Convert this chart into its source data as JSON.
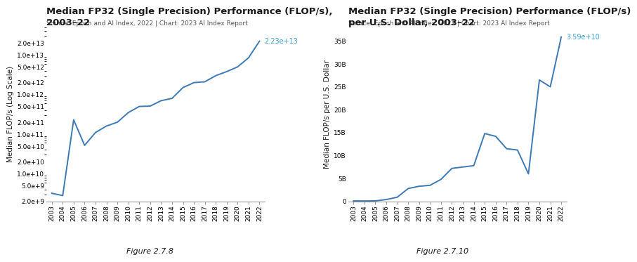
{
  "chart1": {
    "title": "Median FP32 (Single Precision) Performance (FLOP/s),\n2003–22",
    "source": "Source: Epoch and AI Index, 2022 | Chart: 2023 AI Index Report",
    "ylabel": "Median FLOP/s (Log Scale)",
    "figure_label": "Figure 2.7.8",
    "years": [
      2003,
      2004,
      2005,
      2006,
      2007,
      2008,
      2009,
      2010,
      2011,
      2012,
      2013,
      2014,
      2015,
      2016,
      2017,
      2018,
      2019,
      2020,
      2021,
      2022
    ],
    "values": [
      3200000000.0,
      2800000000.0,
      230000000000.0,
      52000000000.0,
      110000000000.0,
      160000000000.0,
      200000000000.0,
      350000000000.0,
      500000000000.0,
      510000000000.0,
      700000000000.0,
      800000000000.0,
      1500000000000.0,
      2000000000000.0,
      2100000000000.0,
      3000000000000.0,
      3800000000000.0,
      5000000000000.0,
      8500000000000.0,
      22300000000000.0
    ],
    "end_label": "2.23e+13",
    "ylim_log": [
      2000000000.0,
      50000000000000.0
    ],
    "log_yticks": [
      2000000000.0,
      5000000000.0,
      10000000000.0,
      20000000000.0,
      50000000000.0,
      100000000000.0,
      200000000000.0,
      500000000000.0,
      1000000000000.0,
      2000000000000.0,
      5000000000000.0,
      10000000000000.0,
      20000000000000.0
    ],
    "log_ytick_labels": [
      "2.0e+9",
      "5.0e+9",
      "1.0e+10",
      "2.0e+10",
      "5.0e+10",
      "1.0e+11",
      "2.0e+11",
      "5.0e+11",
      "1.0e+12",
      "2.0e+12",
      "5.0e+12",
      "1.0e+13",
      "2.0e+13"
    ],
    "line_color": "#3d7ab5",
    "label_color": "#3d9fd4"
  },
  "chart2": {
    "title": "Median FP32 (Single Precision) Performance (FLOP/s)\nper U.S. Dollar, 2003–22",
    "source": "Source: Epoch and AI Index, 2022 | Chart: 2023 AI Index Report",
    "ylabel": "Median FLOP/s per U.S. Dollar",
    "figure_label": "Figure 2.7.10",
    "years": [
      2003,
      2004,
      2005,
      2006,
      2007,
      2008,
      2009,
      2010,
      2011,
      2012,
      2013,
      2014,
      2015,
      2016,
      2017,
      2018,
      2019,
      2020,
      2021,
      2022
    ],
    "values": [
      100000000.0,
      80000000.0,
      100000000.0,
      400000000.0,
      900000000.0,
      2800000000.0,
      3300000000.0,
      3500000000.0,
      4800000000.0,
      7200000000.0,
      7500000000.0,
      7800000000.0,
      14800000000.0,
      14200000000.0,
      11500000000.0,
      11200000000.0,
      6000000000.0,
      26500000000.0,
      25000000000.0,
      35900000000.0
    ],
    "end_label": "3.59e+10",
    "ylim": [
      0,
      38000000000.0
    ],
    "yticks": [
      0,
      5000000000.0,
      10000000000.0,
      15000000000.0,
      20000000000.0,
      25000000000.0,
      30000000000.0,
      35000000000.0
    ],
    "ytick_labels": [
      "0",
      "5B",
      "10B",
      "15B",
      "20B",
      "25B",
      "30B",
      "35B"
    ],
    "line_color": "#3d7ab5",
    "label_color": "#3d9fd4"
  },
  "bg_color": "#ffffff",
  "text_color": "#1a1a1a",
  "title_fontsize": 9.5,
  "source_fontsize": 6.5,
  "ylabel_fontsize": 7.5,
  "tick_fontsize": 6.5,
  "figure_label_fontsize": 8
}
